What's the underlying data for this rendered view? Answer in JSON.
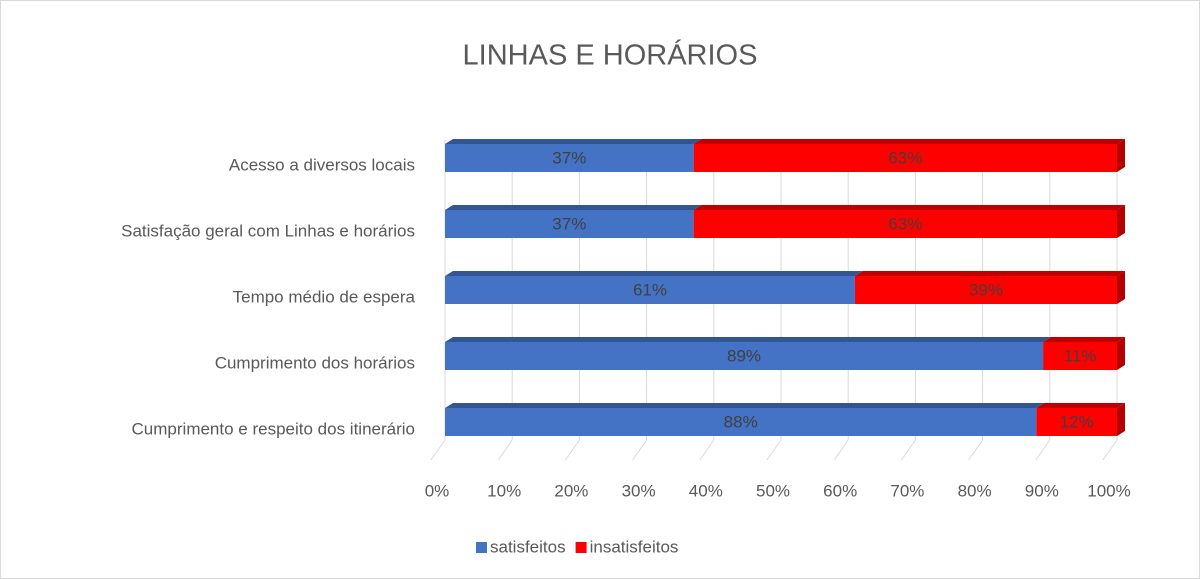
{
  "chart_data": {
    "type": "stacked-bar-horizontal",
    "title": "LINHAS E HORÁRIOS",
    "categories": [
      "Acesso a diversos locais",
      "Satisfação geral com Linhas e horários",
      "Tempo médio de espera",
      "Cumprimento dos horários",
      "Cumprimento e respeito dos itinerário"
    ],
    "series": [
      {
        "name": "satisfeitos",
        "color": "#4472c4",
        "values": [
          37,
          37,
          61,
          89,
          88
        ],
        "value_labels": [
          "37%",
          "37%",
          "61%",
          "89%",
          "88%"
        ]
      },
      {
        "name": "insatisfeitos",
        "color": "#ff0000",
        "values": [
          63,
          63,
          39,
          11,
          12
        ],
        "value_labels": [
          "63%",
          "63%",
          "39%",
          "11%",
          "12%"
        ]
      }
    ],
    "xlim": [
      0,
      100
    ],
    "xticks": [
      {
        "value": 0,
        "label": "0%"
      },
      {
        "value": 10,
        "label": "10%"
      },
      {
        "value": 20,
        "label": "20%"
      },
      {
        "value": 30,
        "label": "30%"
      },
      {
        "value": 40,
        "label": "40%"
      },
      {
        "value": 50,
        "label": "50%"
      },
      {
        "value": 60,
        "label": "60%"
      },
      {
        "value": 70,
        "label": "70%"
      },
      {
        "value": 80,
        "label": "80%"
      },
      {
        "value": 90,
        "label": "90%"
      },
      {
        "value": 100,
        "label": "100%"
      }
    ],
    "grid": true,
    "legend": "bottom"
  }
}
